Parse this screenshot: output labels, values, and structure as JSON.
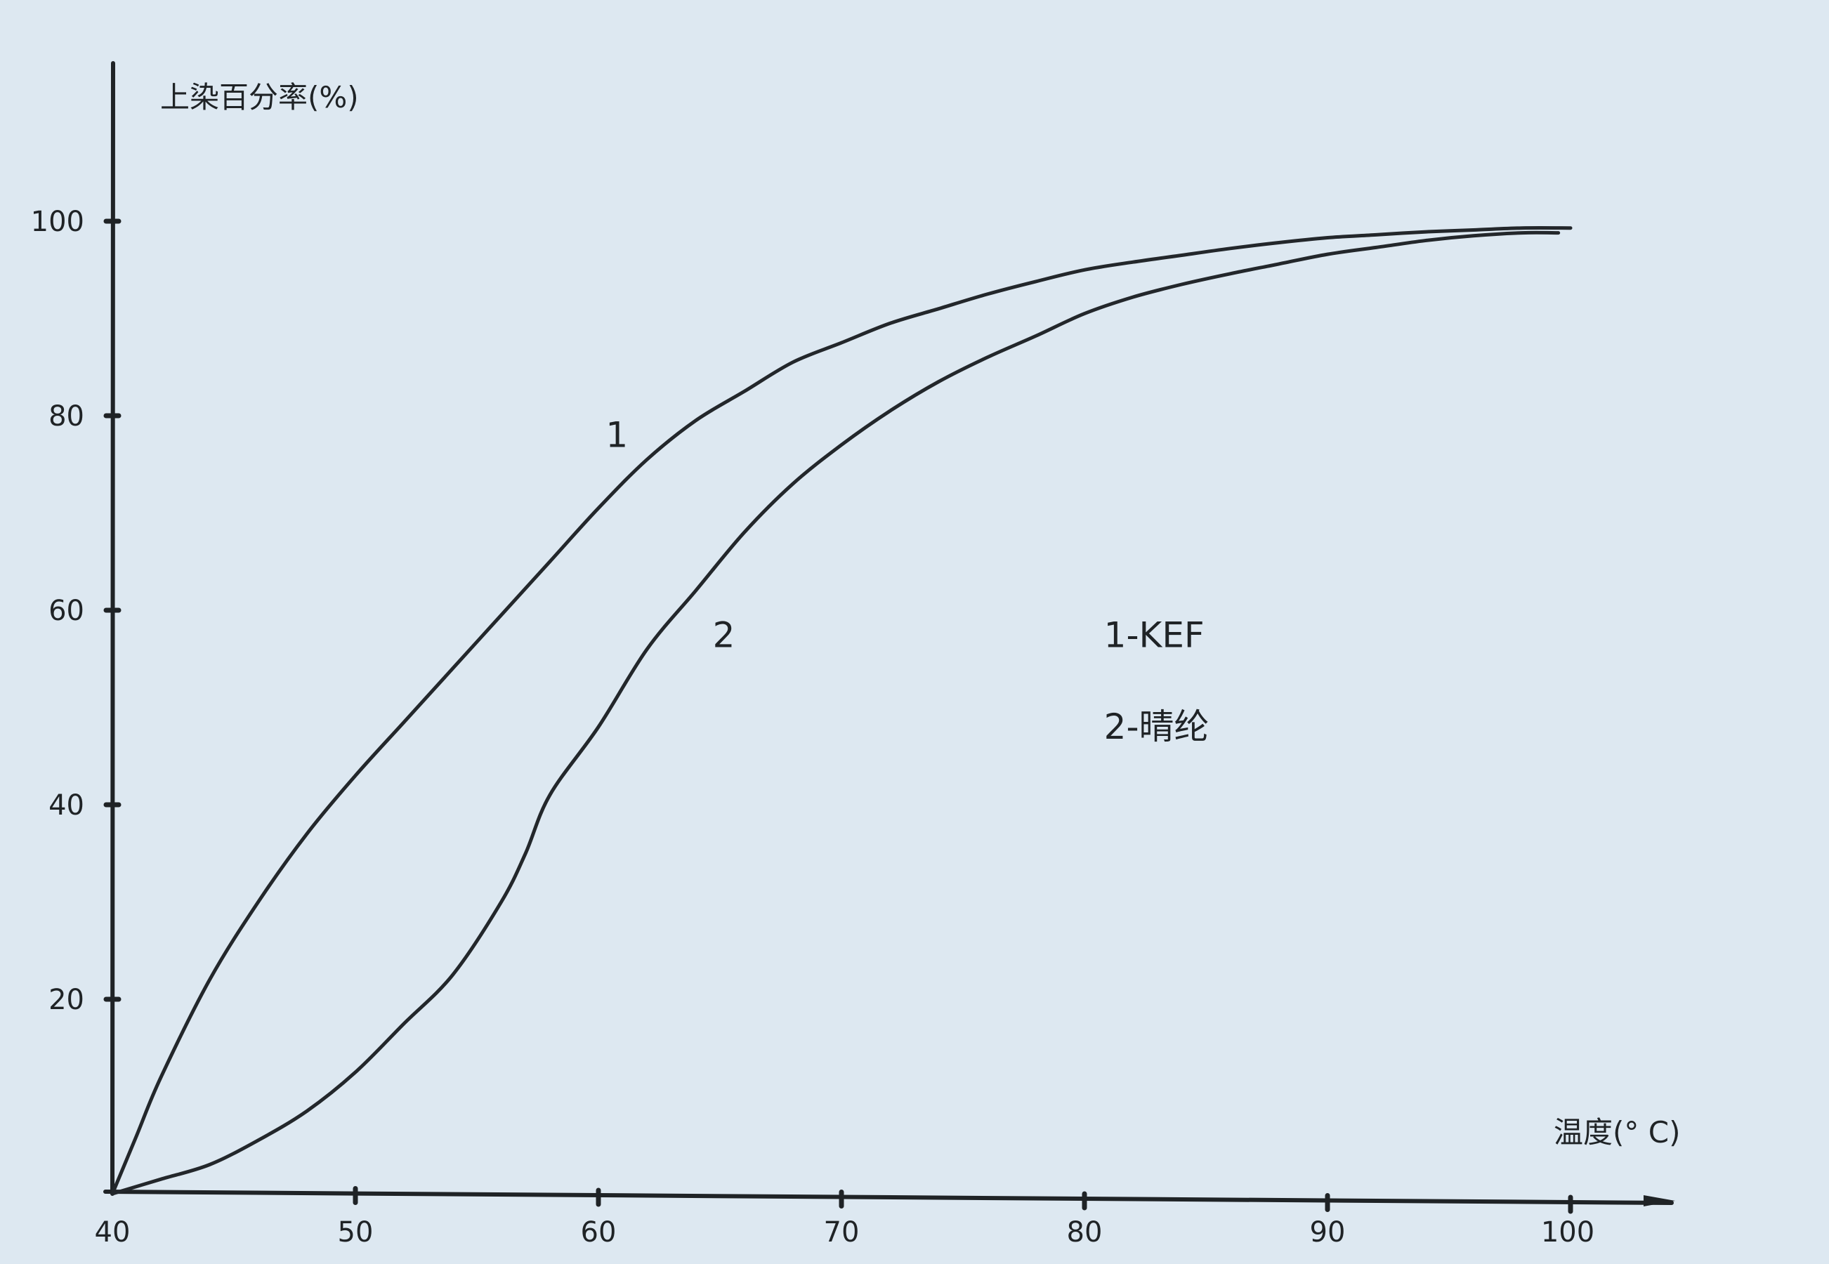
{
  "chart_data": {
    "type": "line",
    "ylabel": "上染百分率(%)",
    "xlabel": "温度(° C)",
    "xlim": [
      40,
      104
    ],
    "ylim": [
      0,
      115
    ],
    "x_ticks": [
      40,
      50,
      60,
      70,
      80,
      90,
      100
    ],
    "y_ticks": [
      20,
      40,
      60,
      80,
      100
    ],
    "grid": false,
    "series": [
      {
        "name": "1",
        "x": [
          40,
          41,
          42,
          44,
          46,
          48,
          50,
          52,
          54,
          56,
          58,
          60,
          62,
          64,
          66,
          68,
          70,
          72,
          74,
          76,
          78,
          80,
          82,
          84,
          86,
          88,
          90,
          92,
          94,
          96,
          98,
          100
        ],
        "y": [
          0,
          6,
          12,
          22,
          30,
          37,
          43,
          48.5,
          54,
          59.5,
          65,
          70.5,
          75.5,
          79.5,
          82.5,
          85.5,
          87.5,
          89.5,
          91,
          92.5,
          93.8,
          95,
          95.8,
          96.5,
          97.2,
          97.8,
          98.3,
          98.6,
          98.9,
          99.1,
          99.3,
          99.3
        ]
      },
      {
        "name": "2",
        "x": [
          40,
          42,
          44,
          46,
          48,
          50,
          52,
          54,
          56,
          57,
          58,
          60,
          62,
          64,
          66,
          68,
          70,
          72,
          74,
          76,
          78,
          80,
          82,
          84,
          86,
          88,
          90,
          92,
          94,
          96,
          98,
          99.5
        ],
        "y": [
          0,
          1.5,
          3,
          5.5,
          8.5,
          12.5,
          17.5,
          22.5,
          30,
          35,
          41,
          48,
          56,
          62,
          68,
          73,
          77,
          80.5,
          83.5,
          86,
          88.2,
          90.5,
          92.2,
          93.5,
          94.6,
          95.6,
          96.6,
          97.3,
          98,
          98.5,
          98.8,
          98.8
        ]
      }
    ],
    "annotations": [
      {
        "text": "1",
        "x": 60.3,
        "y": 76.8
      },
      {
        "text": "2",
        "x": 64.7,
        "y": 56.2
      },
      {
        "text": "1-KEF",
        "x": 80.8,
        "y": 56.2
      },
      {
        "text": "2-晴纶",
        "x": 80.8,
        "y": 46.8
      }
    ]
  }
}
